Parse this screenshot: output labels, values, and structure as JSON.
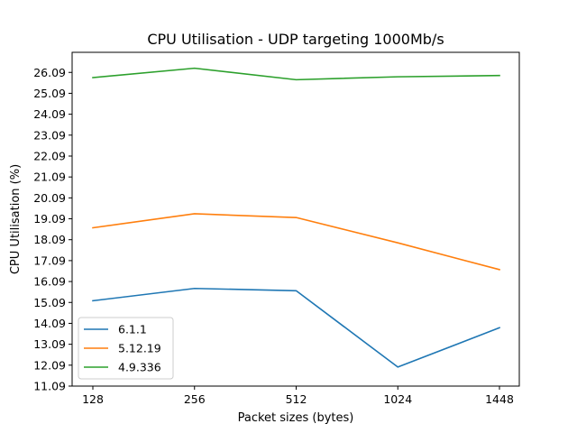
{
  "chart_data": {
    "type": "line",
    "title": "CPU Utilisation - UDP targeting 1000Mb/s",
    "xlabel": "Packet sizes (bytes)",
    "ylabel": "CPU Utilisation (%)",
    "categories": [
      "128",
      "256",
      "512",
      "1024",
      "1448"
    ],
    "yticks": [
      "11.09",
      "12.09",
      "13.09",
      "14.09",
      "15.09",
      "16.09",
      "17.09",
      "18.09",
      "19.09",
      "20.09",
      "21.09",
      "22.09",
      "23.09",
      "24.09",
      "25.09",
      "26.09"
    ],
    "ylim": [
      11.09,
      27.05
    ],
    "grid": false,
    "legend_position": "lower left",
    "series": [
      {
        "name": "6.1.1",
        "color": "#1f77b4",
        "values": [
          15.17,
          15.76,
          15.65,
          12.0,
          13.88
        ]
      },
      {
        "name": "5.12.19",
        "color": "#ff7f0e",
        "values": [
          18.66,
          19.33,
          19.15,
          17.94,
          16.66
        ]
      },
      {
        "name": "4.9.336",
        "color": "#2ca02c",
        "values": [
          25.84,
          26.29,
          25.74,
          25.88,
          25.94
        ]
      }
    ]
  }
}
